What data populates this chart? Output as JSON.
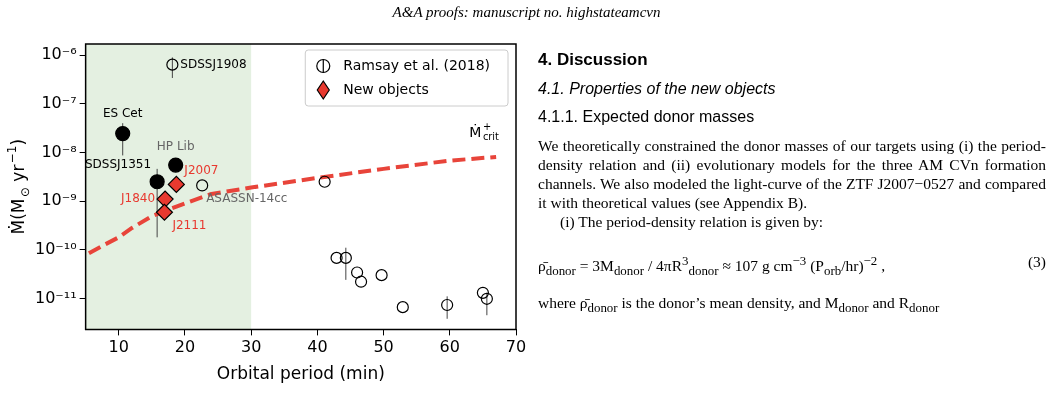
{
  "chart_data": {
    "type": "scatter",
    "xlabel": "Orbital period (min)",
    "ylabel": "Ṁ(M$_{⊙}$ yr$^{−1}$)",
    "log": "y",
    "xlim": [
      5,
      70
    ],
    "xticks": [
      10,
      20,
      30,
      40,
      50,
      60,
      70
    ],
    "ylim": [
      2.3e-12,
      1.7e-06
    ],
    "yticks": [
      {
        "value": 1e-11,
        "label": "10⁻¹¹"
      },
      {
        "value": 1e-10,
        "label": "10⁻¹⁰"
      },
      {
        "value": 1e-09,
        "label": "10⁻⁹"
      },
      {
        "value": 1e-08,
        "label": "10⁻⁸"
      },
      {
        "value": 1e-07,
        "label": "10⁻⁷"
      },
      {
        "value": 1e-06,
        "label": "10⁻⁶"
      }
    ],
    "legend": "top right",
    "bands": [
      {
        "axis": "x",
        "from": 5,
        "to": 30,
        "color": "#e4f0e1"
      }
    ],
    "series": [
      {
        "type": "line",
        "color": "#e8443a",
        "line_style": "dashed",
        "marker": "none",
        "x": [
          5.5,
          8,
          10,
          12,
          15,
          20,
          24,
          30,
          40,
          50,
          60,
          67
        ],
        "values": [
          8.5e-11,
          1.3e-10,
          1.8e-10,
          2.8e-10,
          4.9e-10,
          9e-10,
          1.4e-09,
          1.9e-09,
          3e-09,
          4.6e-09,
          6.8e-09,
          8.1e-09
        ]
      },
      {
        "name": "Ramsay et al. (2018)",
        "color": "#000000",
        "marker": "circle",
        "x": [
          18.1,
          22.6,
          41.1,
          42.9,
          44.3,
          46.0,
          46.6,
          49.7,
          52.9,
          59.6,
          65.0,
          65.6
        ],
        "values": [
          6.4e-07,
          2.1e-09,
          2.5e-09,
          6.8e-11,
          6.8e-11,
          3.4e-11,
          2.2e-11,
          3e-11,
          6.6e-12,
          7.3e-12,
          1.3e-11,
          9.8e-12
        ],
        "errors": [
          [
            3.4e-07,
            9e-07
          ],
          null,
          null,
          null,
          [
            2.4e-11,
            1.1e-10
          ],
          null,
          null,
          null,
          null,
          [
            3.8e-12,
            1.1e-11
          ],
          null,
          [
            4.5e-12,
            1.3e-11
          ]
        ],
        "value_labels": [
          "SDSSJ1908",
          "ASASSN-14cc",
          null,
          null,
          null,
          null,
          null,
          null,
          null,
          null,
          null,
          null
        ]
      },
      {
        "color": "#000000",
        "marker": "circle",
        "x": [
          10.6,
          15.8,
          18.6
        ],
        "values": [
          2.45e-08,
          2.5e-09,
          5.5e-09
        ],
        "errors": [
          [
            8.7e-09,
            4e-08
          ],
          [
            1.8e-10,
            4.6e-09
          ],
          null
        ],
        "value_labels": [
          "ES Cet",
          "SDSSJ1351",
          "HP Lib"
        ]
      },
      {
        "name": "New objects",
        "color": "#e8392f",
        "marker": "diamond",
        "x": [
          18.7,
          17.0,
          16.9
        ],
        "values": [
          2.2e-09,
          1.1e-09,
          5.9e-10
        ],
        "value_labels": [
          "J2007",
          "J1840",
          "J2111"
        ]
      }
    ],
    "annotations": [
      "A&A proofs: manuscript no. highstateamcvn",
      "4. Discussion",
      "4.1. Properties of the new objects",
      "4.1.1. Expected donor masses",
      "We theoretically constrained the donor masses of our targets using (i) the period-density relation and (ii) evolutionary models for the three AM CVn formation channels. We also modeled the light-curve of the ZTF J2007−0527 and compared it with theoretical values (see Appendix B).",
      "(i) The period-density relation is given by:",
      "ρ̄$_{donor}$ = 3M$_{donor}$ / 4πR$^{3}$$_{donor}$ ≈ 107 g cm$^{−3}$ (P$_{orb}$/hr)$^{−2}$ ,",
      "(3)",
      "where ρ̄$_{donor}$ is the donor’s mean density, and M$_{donor}$ and R$_{donor}$",
      "Ṁ$^{+}$$_{crit}$"
    ]
  }
}
